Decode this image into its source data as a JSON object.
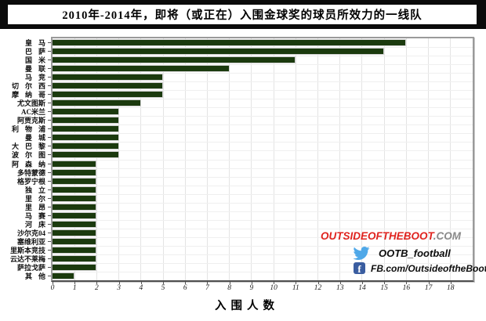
{
  "title": "2010年-2014年，即将（或正在）入围金球奖的球员所效力的一线队",
  "chart_data": {
    "type": "bar",
    "orientation": "horizontal",
    "title": "2010年-2014年，即将（或正在）入围金球奖的球员所效力的一线队",
    "xlabel": "入围人数",
    "ylabel": "",
    "xlim": [
      0,
      19
    ],
    "xticks": [
      0,
      1,
      2,
      3,
      4,
      5,
      6,
      7,
      8,
      9,
      10,
      11,
      12,
      13,
      14,
      15,
      16,
      17,
      18
    ],
    "grid": true,
    "legend_position": "none",
    "bar_color": "#1b3a0e",
    "categories": [
      "皇马",
      "巴萨",
      "国米",
      "曼联",
      "马竞",
      "切尔西",
      "摩纳哥",
      "尤文图斯",
      "AC米兰",
      "阿贾克斯",
      "利物浦",
      "曼城",
      "大巴黎",
      "波尔图",
      "阿森纳",
      "多特蒙德",
      "格罗宁根",
      "独立",
      "里尔",
      "里昂",
      "马赛",
      "河床",
      "沙尔克04",
      "塞维利亚",
      "里斯本竞技",
      "云达不莱梅",
      "萨拉戈萨",
      "其他"
    ],
    "values": [
      16,
      15,
      11,
      8,
      5,
      5,
      5,
      4,
      3,
      3,
      3,
      3,
      3,
      3,
      2,
      2,
      2,
      2,
      2,
      2,
      2,
      2,
      2,
      2,
      2,
      2,
      2,
      1
    ]
  },
  "branding": {
    "site_main": "OUTSIDEOFTHEBOOT",
    "site_suffix": ".COM",
    "twitter_icon": "twitter-bird",
    "twitter_handle": "OOTB_football",
    "facebook_icon": "facebook-f",
    "facebook_glyph": "f",
    "facebook_url": "FB.com/OutsideoftheBoot"
  },
  "colors": {
    "bar": "#1b3a0e",
    "banner_bg": "#0b0b0b",
    "brand_red": "#e0231e",
    "brand_gray": "#8a8a8a",
    "twitter_blue": "#4fa8e8",
    "facebook_blue": "#3a5da0"
  }
}
